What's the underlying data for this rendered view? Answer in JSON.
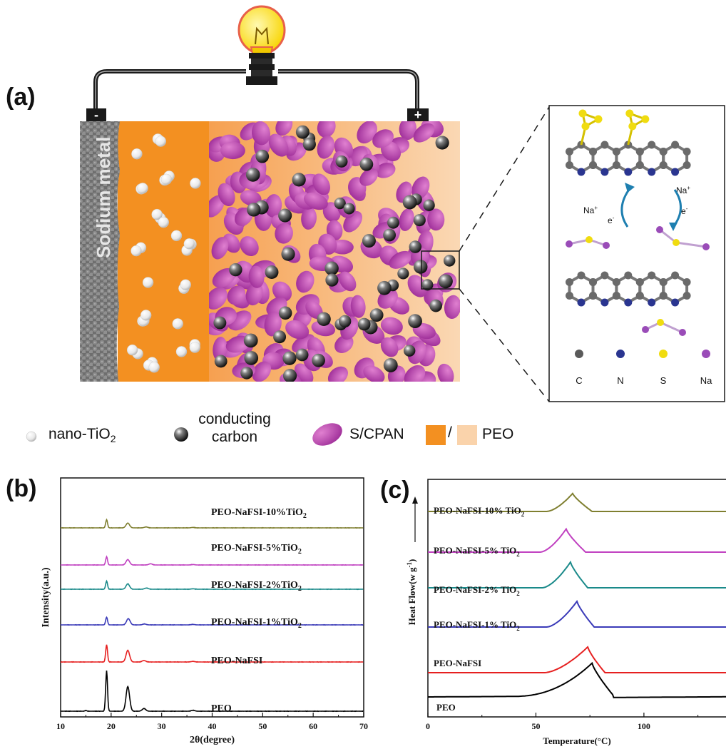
{
  "panel_a": {
    "label": "(a)",
    "anode_label": "Sodium metal",
    "minus_sign": "-",
    "plus_sign": "+",
    "inset_ions": {
      "na_plus_top": "Na",
      "na_plus_left": "Na",
      "e_left": "e",
      "e_right": "e"
    },
    "element_legend": [
      {
        "symbol": "C",
        "color": "#5a5a5a"
      },
      {
        "symbol": "N",
        "color": "#2a3590"
      },
      {
        "symbol": "S",
        "color": "#f0dc10"
      },
      {
        "symbol": "Na",
        "color": "#9a4cb8"
      }
    ],
    "legend": {
      "tio2": "nano-TiO",
      "tio2_sub": "2",
      "carbon_line1": "conducting",
      "carbon_line2": "carbon",
      "scpan": "S/CPAN",
      "slash": "/",
      "peo": "PEO"
    }
  },
  "chart_data": [
    {
      "type": "line",
      "panel": "(b)",
      "xlabel": "2θ(degree)",
      "ylabel": "Intensity(a.u.)",
      "xlim": [
        10,
        70
      ],
      "xticks": [
        10,
        20,
        30,
        40,
        50,
        60,
        70
      ],
      "series": [
        {
          "name": "PEO-NaFSI-10%TiO2",
          "color": "#7f7f30",
          "peaks": [
            {
              "x": 19.1,
              "h": 0.55
            },
            {
              "x": 23.3,
              "h": 0.32
            },
            {
              "x": 26.9,
              "h": 0.06
            },
            {
              "x": 36.2,
              "h": 0.03
            }
          ]
        },
        {
          "name": "PEO-NaFSI-5%TiO2",
          "color": "#c040c0",
          "peaks": [
            {
              "x": 19.1,
              "h": 0.55
            },
            {
              "x": 23.3,
              "h": 0.36
            },
            {
              "x": 27.8,
              "h": 0.08
            },
            {
              "x": 36.2,
              "h": 0.03
            }
          ]
        },
        {
          "name": "PEO-NaFSI-2%TiO2",
          "color": "#1a8a8a",
          "peaks": [
            {
              "x": 19.1,
              "h": 0.55
            },
            {
              "x": 23.3,
              "h": 0.36
            },
            {
              "x": 27.0,
              "h": 0.08
            },
            {
              "x": 36.2,
              "h": 0.03
            }
          ]
        },
        {
          "name": "PEO-NaFSI-1%TiO2",
          "color": "#3a3ab8",
          "peaks": [
            {
              "x": 19.1,
              "h": 0.52
            },
            {
              "x": 23.4,
              "h": 0.42
            },
            {
              "x": 26.6,
              "h": 0.06
            },
            {
              "x": 36.2,
              "h": 0.03
            }
          ]
        },
        {
          "name": "PEO-NaFSI",
          "color": "#e62020",
          "peaks": [
            {
              "x": 19.1,
              "h": 1.15
            },
            {
              "x": 23.3,
              "h": 0.78
            },
            {
              "x": 26.5,
              "h": 0.1
            },
            {
              "x": 36.2,
              "h": 0.04
            }
          ]
        },
        {
          "name": "PEO",
          "color": "#000000",
          "peaks": [
            {
              "x": 15.0,
              "h": 0.05
            },
            {
              "x": 19.1,
              "h": 2.7
            },
            {
              "x": 23.3,
              "h": 1.65
            },
            {
              "x": 26.5,
              "h": 0.18
            },
            {
              "x": 36.2,
              "h": 0.06
            }
          ]
        }
      ]
    },
    {
      "type": "line",
      "panel": "(c)",
      "xlabel": "Temperature(°C)",
      "ylabel": "Heat Flow(w g",
      "ylabel_sup": "-1",
      "ylabel_end": ")",
      "xlim": [
        0,
        138
      ],
      "xticks": [
        0,
        50,
        100
      ],
      "series": [
        {
          "name": "PEO-NaFSI-10% TiO2",
          "color": "#7f7f30",
          "onset": 55,
          "peak_x": 67,
          "end_x": 76,
          "peak_h": 0.7
        },
        {
          "name": "PEO-NaFSI-5% TiO2",
          "color": "#c040c0",
          "onset": 52,
          "peak_x": 64,
          "end_x": 73,
          "peak_h": 0.9
        },
        {
          "name": "PEO-NaFSI-2% TiO2",
          "color": "#1a8a8a",
          "onset": 53,
          "peak_x": 66,
          "end_x": 74,
          "peak_h": 1.0
        },
        {
          "name": "PEO-NaFSI-1% TiO2",
          "color": "#3a3ab8",
          "onset": 55,
          "peak_x": 69,
          "end_x": 77,
          "peak_h": 1.0
        },
        {
          "name": "PEO-NaFSI",
          "color": "#e62020",
          "onset": 54,
          "peak_x": 74,
          "end_x": 82,
          "peak_h": 1.0
        },
        {
          "name": "PEO",
          "color": "#000000",
          "onset": 40,
          "peak_x": 76,
          "end_x": 86,
          "peak_h": 1.5
        }
      ]
    }
  ]
}
